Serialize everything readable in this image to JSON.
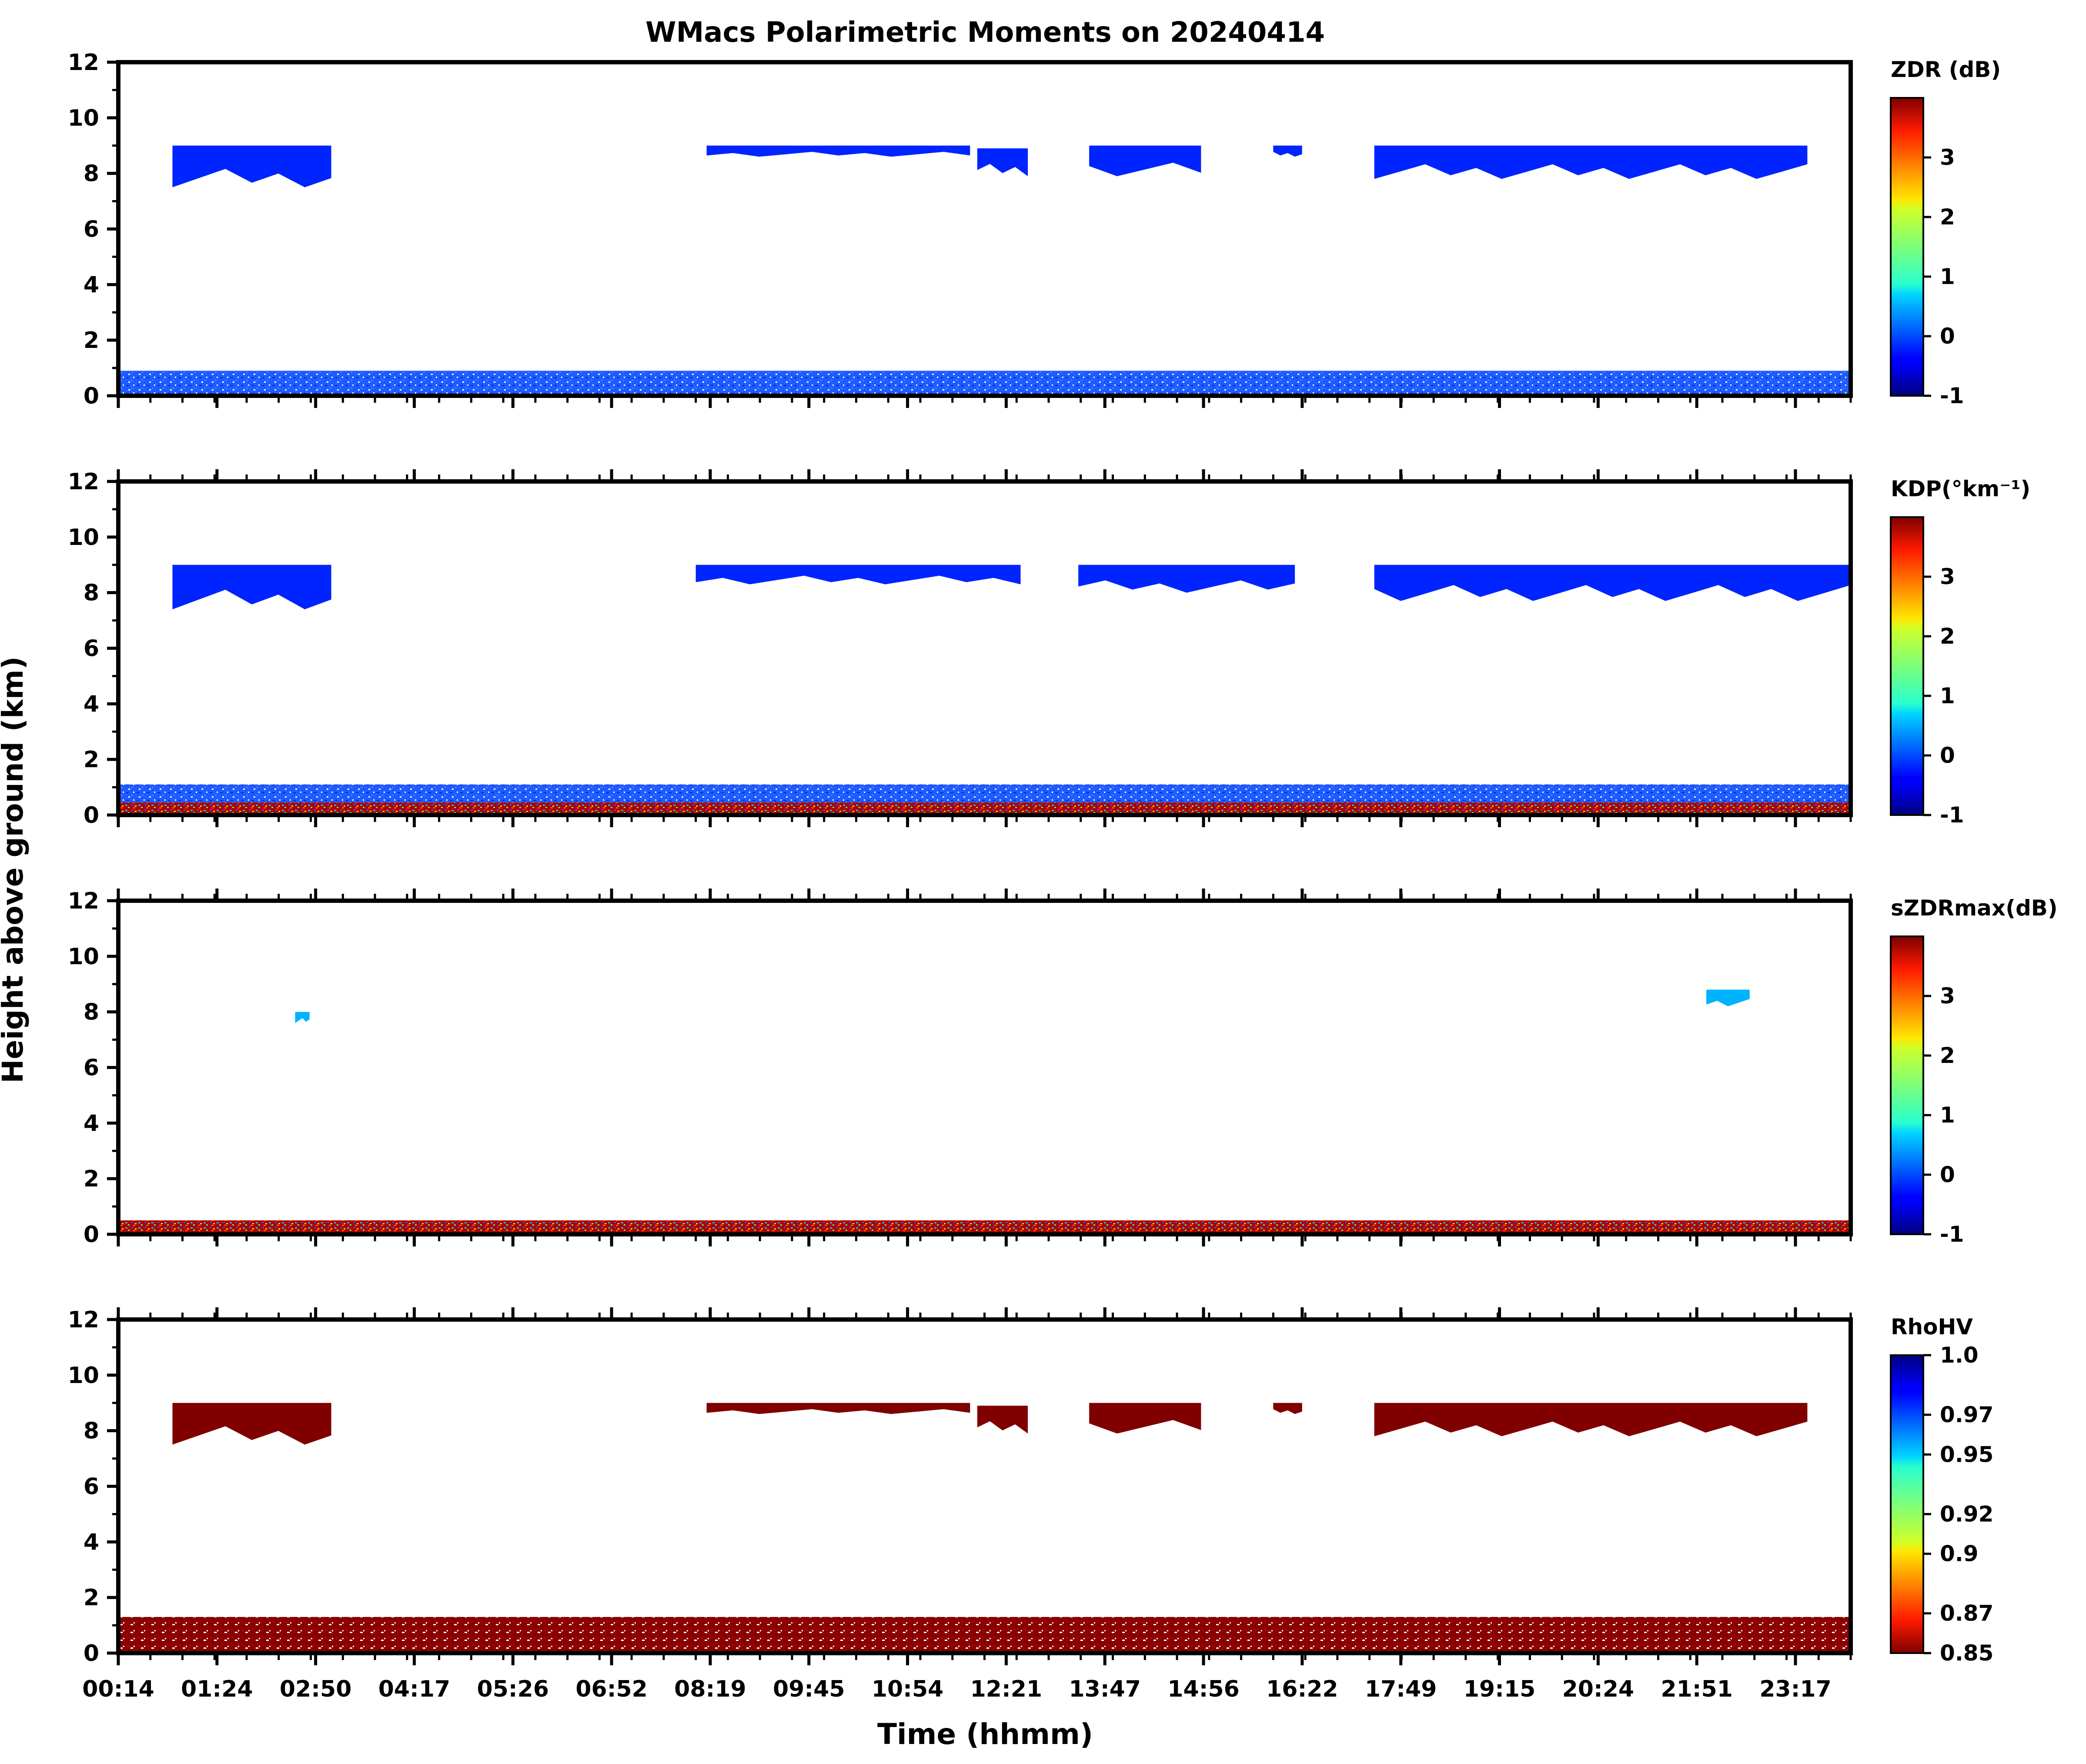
{
  "figure": {
    "title": "WMacs Polarimetric Moments on 20240414",
    "xlabel": "Time (hhmm)",
    "ylabel": "Height above ground (km)"
  },
  "chart_data": [
    {
      "type": "heatmap",
      "name": "ZDR",
      "colorbar_label": "ZDR (dB)",
      "colormap": "jet",
      "clim": [
        -1,
        4
      ],
      "colorbar_ticks": [
        3,
        2,
        1,
        0,
        -1
      ],
      "colorbar_tick_labels": [
        "3",
        "2",
        "1",
        "0",
        "-1"
      ],
      "ylim": [
        0,
        12
      ],
      "yticks": [
        0,
        2,
        4,
        6,
        8,
        10,
        12
      ],
      "dominant_value": -0.2,
      "regions": [
        {
          "t0": 0.95,
          "t1": 3.15,
          "h_top": 9.0,
          "h_bot": 7.5,
          "desc": "cirrus 00:57-03:09"
        },
        {
          "t0": 8.35,
          "t1": 12.0,
          "h_top": 9.0,
          "h_bot": 8.6
        },
        {
          "t0": 12.1,
          "t1": 12.8,
          "h_top": 8.9,
          "h_bot": 7.9
        },
        {
          "t0": 13.65,
          "t1": 15.2,
          "h_top": 9.0,
          "h_bot": 7.9
        },
        {
          "t0": 16.2,
          "t1": 16.6,
          "h_top": 9.0,
          "h_bot": 8.6
        },
        {
          "t0": 17.6,
          "t1": 23.6,
          "h_top": 9.0,
          "h_bot": 7.8
        },
        {
          "t0": 0.2,
          "t1": 24.2,
          "h_top": 0.9,
          "h_bot": 0.0,
          "desc": "boundary layer"
        }
      ]
    },
    {
      "type": "heatmap",
      "name": "KDP",
      "colorbar_label": "KDP(°km⁻¹)",
      "colormap": "jet",
      "clim": [
        -1,
        4
      ],
      "colorbar_ticks": [
        3,
        2,
        1,
        0,
        -1
      ],
      "colorbar_tick_labels": [
        "3",
        "2",
        "1",
        "0",
        "-1"
      ],
      "ylim": [
        0,
        12
      ],
      "yticks": [
        0,
        2,
        4,
        6,
        8,
        10,
        12
      ],
      "dominant_value": -0.2,
      "regions": [
        {
          "t0": 0.95,
          "t1": 3.15,
          "h_top": 9.0,
          "h_bot": 7.4
        },
        {
          "t0": 8.2,
          "t1": 12.7,
          "h_top": 9.0,
          "h_bot": 8.3
        },
        {
          "t0": 13.5,
          "t1": 16.5,
          "h_top": 9.0,
          "h_bot": 8.0
        },
        {
          "t0": 17.6,
          "t1": 24.2,
          "h_top": 9.0,
          "h_bot": 7.7
        },
        {
          "t0": 0.2,
          "t1": 24.2,
          "h_top": 1.1,
          "h_bot": 0.0,
          "desc": "boundary layer with noisy lowest levels"
        }
      ]
    },
    {
      "type": "heatmap",
      "name": "sZDRmax",
      "colorbar_label": "sZDRmax(dB)",
      "colormap": "jet",
      "clim": [
        -1,
        4
      ],
      "colorbar_ticks": [
        3,
        2,
        1,
        0,
        -1
      ],
      "colorbar_tick_labels": [
        "3",
        "2",
        "1",
        "0",
        "-1"
      ],
      "ylim": [
        0,
        12
      ],
      "yticks": [
        0,
        2,
        4,
        6,
        8,
        10,
        12
      ],
      "dominant_value": 0.5,
      "regions": [
        {
          "t0": 2.65,
          "t1": 2.85,
          "h_top": 8.0,
          "h_bot": 7.6
        },
        {
          "t0": 22.2,
          "t1": 22.8,
          "h_top": 8.8,
          "h_bot": 8.2
        },
        {
          "t0": 0.2,
          "t1": 24.2,
          "h_top": 0.5,
          "h_bot": 0.0
        }
      ]
    },
    {
      "type": "heatmap",
      "name": "RhoHV",
      "colorbar_label": "RhoHV",
      "colormap": "jet_r",
      "clim": [
        0.85,
        1.0
      ],
      "colorbar_ticks": [
        1.0,
        0.97,
        0.95,
        0.92,
        0.9,
        0.87,
        0.85
      ],
      "colorbar_tick_labels": [
        "1.0",
        "0.97",
        "0.95",
        "0.92",
        "0.9",
        "0.87",
        "0.85"
      ],
      "ylim": [
        0,
        12
      ],
      "yticks": [
        0,
        2,
        4,
        6,
        8,
        10,
        12
      ],
      "dominant_value": 0.85,
      "regions": [
        {
          "t0": 0.95,
          "t1": 3.15,
          "h_top": 9.0,
          "h_bot": 7.5
        },
        {
          "t0": 8.35,
          "t1": 12.0,
          "h_top": 9.0,
          "h_bot": 8.6
        },
        {
          "t0": 12.1,
          "t1": 12.8,
          "h_top": 8.9,
          "h_bot": 7.9
        },
        {
          "t0": 13.65,
          "t1": 15.2,
          "h_top": 9.0,
          "h_bot": 7.9
        },
        {
          "t0": 16.2,
          "t1": 16.6,
          "h_top": 9.0,
          "h_bot": 8.6
        },
        {
          "t0": 17.6,
          "t1": 23.6,
          "h_top": 9.0,
          "h_bot": 7.8
        },
        {
          "t0": 0.2,
          "t1": 24.2,
          "h_top": 1.3,
          "h_bot": 0.0
        }
      ]
    }
  ],
  "x_axis": {
    "range": [
      "00:14",
      "24:14"
    ],
    "tick_labels": [
      "00:14",
      "01:24",
      "02:50",
      "04:17",
      "05:26",
      "06:52",
      "08:19",
      "09:45",
      "10:54",
      "12:21",
      "13:47",
      "14:56",
      "16:22",
      "17:49",
      "19:15",
      "20:24",
      "21:51",
      "23:17"
    ]
  }
}
